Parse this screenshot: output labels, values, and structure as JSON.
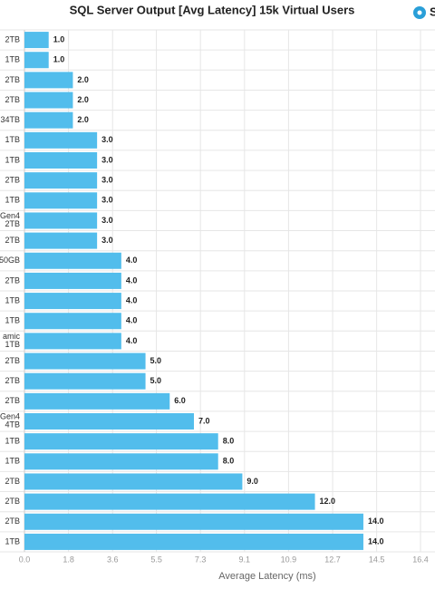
{
  "chart_data": {
    "type": "bar",
    "orientation": "horizontal",
    "title": "SQL Server Output [Avg Latency] 15k Virtual Users",
    "logo_text": "S",
    "x_label": "Average Latency (ms)",
    "categories": [
      "2TB",
      "1TB",
      "2TB",
      "2TB",
      "34TB",
      "1TB",
      "1TB",
      "2TB",
      "1TB",
      "Gen4 2TB",
      "2TB",
      "50GB",
      "2TB",
      "1TB",
      "1TB",
      "amic 1TB",
      "2TB",
      "2TB",
      "2TB",
      "Gen4 4TB",
      "1TB",
      "1TB",
      "2TB",
      "2TB",
      "2TB",
      "1TB"
    ],
    "values": [
      1,
      1,
      2,
      2,
      2,
      3,
      3,
      3,
      3,
      3,
      3,
      4,
      4,
      4,
      4,
      4,
      5,
      5,
      6,
      7,
      8,
      8,
      9,
      12,
      14,
      14
    ],
    "value_labels": [
      "1.0",
      "1.0",
      "2.0",
      "2.0",
      "2.0",
      "3.0",
      "3.0",
      "3.0",
      "3.0",
      "3.0",
      "3.0",
      "4.0",
      "4.0",
      "4.0",
      "4.0",
      "4.0",
      "5.0",
      "5.0",
      "6.0",
      "7.0",
      "8.0",
      "8.0",
      "9.0",
      "12.0",
      "14.0",
      "14.0"
    ],
    "color": "#52bdec",
    "xlim": [
      0,
      16.36
    ],
    "xticks": [
      {
        "value": 0,
        "label": "0.0"
      },
      {
        "value": 1.82,
        "label": "1.8"
      },
      {
        "value": 3.64,
        "label": "3.6"
      },
      {
        "value": 5.45,
        "label": "5.5"
      },
      {
        "value": 7.27,
        "label": "7.3"
      },
      {
        "value": 9.09,
        "label": "9.1"
      },
      {
        "value": 10.91,
        "label": "10.9"
      },
      {
        "value": 12.73,
        "label": "12.7"
      },
      {
        "value": 14.55,
        "label": "14.5"
      },
      {
        "value": 16.36,
        "label": "16.4"
      }
    ],
    "grid": true
  }
}
